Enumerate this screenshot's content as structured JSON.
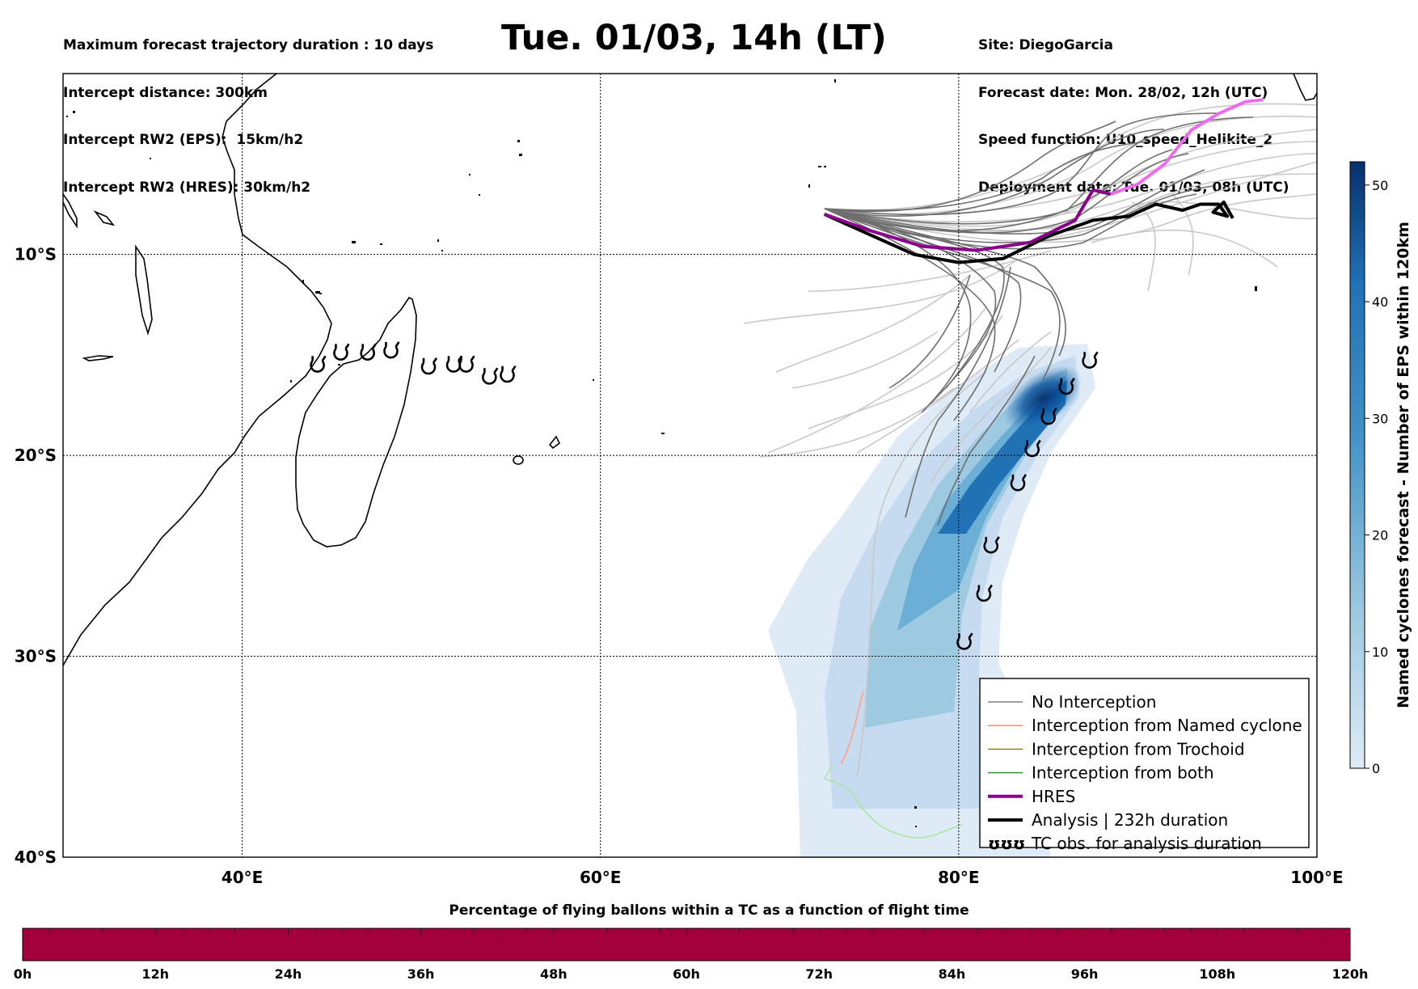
{
  "header": {
    "left_lines": [
      "Maximum forecast trajectory duration : 10 days",
      "Intercept distance: 300km",
      "Intercept RW2 (EPS):  15km/h2",
      "Intercept RW2 (HRES): 30km/h2"
    ],
    "title": "Tue. 01/03, 14h (LT)",
    "right_lines": [
      "Site: DiegoGarcia",
      "Forecast date: Mon. 28/02, 12h (UTC)",
      "Speed function: U10_speed_Helikite_2",
      "Deployment date: Tue. 01/03, 08h (UTC)"
    ]
  },
  "map": {
    "lon_range": [
      30,
      100
    ],
    "lat_range": [
      -40,
      -1
    ],
    "lon_ticks": [
      {
        "value": 40,
        "label": "40°E"
      },
      {
        "value": 60,
        "label": "60°E"
      },
      {
        "value": 80,
        "label": "80°E"
      },
      {
        "value": 100,
        "label": "100°E"
      }
    ],
    "lat_ticks": [
      {
        "value": -10,
        "label": "10°S"
      },
      {
        "value": -20,
        "label": "20°S"
      },
      {
        "value": -30,
        "label": "30°S"
      },
      {
        "value": -40,
        "label": "40°S"
      }
    ],
    "gridlines": "dotted"
  },
  "legend": {
    "placement": "lower-right",
    "items": [
      {
        "label": "No Interception",
        "color": "#808080",
        "style": "line-thin"
      },
      {
        "label": "Interception from Named cyclone",
        "color": "#ff7f50",
        "style": "line-thin"
      },
      {
        "label": "Interception from Trochoid",
        "color": "#808000",
        "style": "line-thin"
      },
      {
        "label": "Interception from both",
        "color": "#228b22",
        "style": "line-thin"
      },
      {
        "label": "HRES",
        "color": "#8b008b",
        "style": "line-thick"
      },
      {
        "label": "Analysis | 232h duration",
        "color": "#000000",
        "style": "line-thick"
      },
      {
        "label": "TC obs. for analysis duration",
        "color": "#000000",
        "style": "cyclone-symbols"
      }
    ],
    "symbol_text": "ʊʊʊ"
  },
  "side_colorbar": {
    "label": "Named cyclones forecast - Number of EPS within 120km",
    "range": [
      0,
      52
    ],
    "ticks": [
      0,
      10,
      20,
      30,
      40,
      50
    ],
    "colors": [
      "#deebf7",
      "#9ecae1",
      "#4292c6",
      "#2171b5",
      "#08306b"
    ]
  },
  "bottom_colorbar": {
    "title": "Percentage of flying ballons within a TC as a function of flight time",
    "fill_color": "#a2003c",
    "ticks": [
      "0h",
      "12h",
      "24h",
      "36h",
      "48h",
      "60h",
      "72h",
      "84h",
      "96h",
      "108h",
      "120h"
    ]
  },
  "tracks": {
    "hres": [
      [
        72.5,
        -8.0
      ],
      [
        75,
        -8.8
      ],
      [
        78,
        -9.6
      ],
      [
        81,
        -9.8
      ],
      [
        84,
        -9.4
      ],
      [
        86.5,
        -8.3
      ],
      [
        87.5,
        -6.8
      ],
      [
        88.5,
        -7.0
      ],
      [
        90,
        -6.5
      ],
      [
        91.5,
        -5.5
      ],
      [
        93,
        -3.8
      ],
      [
        94.5,
        -3.0
      ],
      [
        96,
        -2.4
      ],
      [
        97,
        -2.3
      ]
    ],
    "analysis": [
      [
        72.5,
        -8.0
      ],
      [
        75,
        -9.0
      ],
      [
        77.5,
        -10.0
      ],
      [
        80,
        -10.4
      ],
      [
        82.5,
        -10.2
      ],
      [
        85,
        -9.1
      ],
      [
        87.5,
        -8.3
      ],
      [
        89.5,
        -8.1
      ],
      [
        91,
        -7.5
      ],
      [
        92.5,
        -7.8
      ],
      [
        93.5,
        -7.5
      ],
      [
        94.5,
        -7.5
      ],
      [
        95,
        -8.1
      ],
      [
        94.2,
        -7.9
      ],
      [
        94.8,
        -7.4
      ],
      [
        95.3,
        -8.2
      ]
    ],
    "tc_obs": [
      [
        80.3,
        -29.3
      ],
      [
        81.4,
        -26.9
      ],
      [
        81.8,
        -24.5
      ],
      [
        83.3,
        -21.4
      ],
      [
        84.1,
        -19.7
      ],
      [
        85.0,
        -18.1
      ],
      [
        86.0,
        -16.6
      ],
      [
        87.3,
        -15.3
      ]
    ],
    "tc_obs_west": [
      [
        44.2,
        -15.5
      ],
      [
        45.5,
        -14.9
      ],
      [
        47.0,
        -14.9
      ],
      [
        48.3,
        -14.8
      ],
      [
        50.4,
        -15.6
      ],
      [
        51.8,
        -15.5
      ],
      [
        52.5,
        -15.5
      ],
      [
        53.8,
        -16.1
      ],
      [
        54.8,
        -16.0
      ]
    ]
  }
}
